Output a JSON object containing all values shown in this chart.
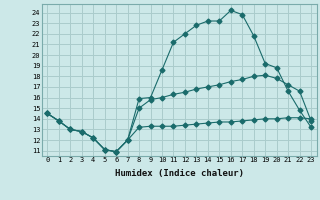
{
  "title": "",
  "xlabel": "Humidex (Indice chaleur)",
  "ylabel": "",
  "bg_color": "#cce8e8",
  "grid_color": "#aacccc",
  "line_color": "#1a6b6b",
  "xlim": [
    -0.5,
    23.5
  ],
  "ylim": [
    10.5,
    24.8
  ],
  "yticks": [
    11,
    12,
    13,
    14,
    15,
    16,
    17,
    18,
    19,
    20,
    21,
    22,
    23,
    24
  ],
  "xticks": [
    0,
    1,
    2,
    3,
    4,
    5,
    6,
    7,
    8,
    9,
    10,
    11,
    12,
    13,
    14,
    15,
    16,
    17,
    18,
    19,
    20,
    21,
    22,
    23
  ],
  "series1_x": [
    0,
    1,
    2,
    3,
    4,
    5,
    6,
    7,
    8,
    9,
    10,
    11,
    12,
    13,
    14,
    15,
    16,
    17,
    18,
    19,
    20,
    21,
    22,
    23
  ],
  "series1_y": [
    14.5,
    13.8,
    13.0,
    12.8,
    12.2,
    11.1,
    10.9,
    12.0,
    13.2,
    13.3,
    13.3,
    13.3,
    13.4,
    13.5,
    13.6,
    13.7,
    13.7,
    13.8,
    13.9,
    14.0,
    14.0,
    14.1,
    14.1,
    14.0
  ],
  "series2_x": [
    0,
    1,
    2,
    3,
    4,
    5,
    6,
    7,
    8,
    9,
    10,
    11,
    12,
    13,
    14,
    15,
    16,
    17,
    18,
    19,
    20,
    21,
    22,
    23
  ],
  "series2_y": [
    14.5,
    13.8,
    13.0,
    12.8,
    12.2,
    11.1,
    10.9,
    12.0,
    15.0,
    15.8,
    16.0,
    16.3,
    16.5,
    16.8,
    17.0,
    17.2,
    17.5,
    17.7,
    18.0,
    18.1,
    17.8,
    17.2,
    16.6,
    13.8
  ],
  "series3_x": [
    0,
    1,
    2,
    3,
    4,
    5,
    6,
    7,
    8,
    9,
    10,
    11,
    12,
    13,
    14,
    15,
    16,
    17,
    18,
    19,
    20,
    21,
    22,
    23
  ],
  "series3_y": [
    14.5,
    13.8,
    13.0,
    12.8,
    12.2,
    11.1,
    10.9,
    12.0,
    15.9,
    16.0,
    18.6,
    21.2,
    22.0,
    22.8,
    23.2,
    23.2,
    24.2,
    23.8,
    21.8,
    19.2,
    18.8,
    16.6,
    14.8,
    13.2
  ],
  "marker": "D",
  "markersize": 2.5
}
